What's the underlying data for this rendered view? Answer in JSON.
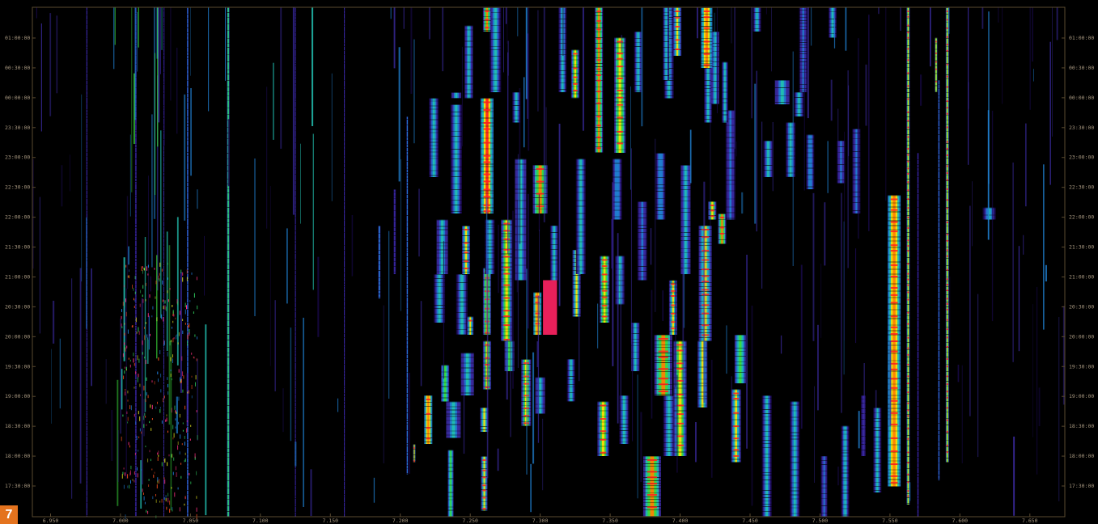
{
  "figure_number": "7",
  "colors": {
    "background": "#000000",
    "axis": "#5a4a30",
    "label": "#a89880",
    "badge": "#e4731e"
  },
  "chart_data": {
    "type": "heatmap",
    "x_unit": "MHz",
    "xlim": [
      6.937,
      7.675
    ],
    "x_ticks": [
      "6.950",
      "7.000",
      "7.050",
      "7.100",
      "7.150",
      "7.200",
      "7.250",
      "7.300",
      "7.350",
      "7.400",
      "7.450",
      "7.500",
      "7.550",
      "7.600",
      "7.650"
    ],
    "y_ticks": [
      "01:00:00",
      "00:30:00",
      "00:00:00",
      "23:30:00",
      "23:00:00",
      "22:30:00",
      "22:00:00",
      "21:30:00",
      "21:00:00",
      "20:30:00",
      "20:00:00",
      "19:30:00",
      "19:00:00",
      "18:30:00",
      "18:00:00",
      "17:30:00"
    ],
    "time_range_hours": [
      17.0,
      25.4
    ],
    "colormap": [
      "#000000",
      "#1a0a50",
      "#3a2aa0",
      "#1f7fd0",
      "#22c0b0",
      "#3adc3a",
      "#ffe000",
      "#ff8000",
      "#ff2020"
    ],
    "signals": [
      {
        "f": 7.236,
        "t0": 17.0,
        "t1": 18.1,
        "i": 0.62,
        "w": 7
      },
      {
        "f": 7.26,
        "t0": 17.1,
        "t1": 18.0,
        "i": 0.72,
        "w": 8
      },
      {
        "f": 7.21,
        "t0": 17.9,
        "t1": 18.2,
        "i": 0.85,
        "w": 3
      },
      {
        "f": 7.22,
        "t0": 18.2,
        "t1": 19.0,
        "i": 0.9,
        "w": 10
      },
      {
        "f": 7.238,
        "t0": 18.3,
        "t1": 18.9,
        "i": 0.55,
        "w": 18
      },
      {
        "f": 7.26,
        "t0": 18.4,
        "t1": 18.8,
        "i": 0.7,
        "w": 10
      },
      {
        "f": 7.232,
        "t0": 18.9,
        "t1": 19.5,
        "i": 0.6,
        "w": 10
      },
      {
        "f": 7.248,
        "t0": 19.0,
        "t1": 19.7,
        "i": 0.55,
        "w": 16
      },
      {
        "f": 7.262,
        "t0": 19.1,
        "t1": 19.9,
        "i": 0.75,
        "w": 10
      },
      {
        "f": 7.29,
        "t0": 18.5,
        "t1": 19.6,
        "i": 0.78,
        "w": 12
      },
      {
        "f": 7.278,
        "t0": 19.4,
        "t1": 19.9,
        "i": 0.62,
        "w": 12
      },
      {
        "f": 7.3,
        "t0": 18.7,
        "t1": 19.3,
        "i": 0.55,
        "w": 12
      },
      {
        "f": 7.322,
        "t0": 18.9,
        "t1": 19.6,
        "i": 0.48,
        "w": 10
      },
      {
        "f": 7.345,
        "t0": 18.0,
        "t1": 18.9,
        "i": 0.76,
        "w": 14
      },
      {
        "f": 7.36,
        "t0": 18.2,
        "t1": 19.0,
        "i": 0.45,
        "w": 12
      },
      {
        "f": 7.368,
        "t0": 19.4,
        "t1": 20.2,
        "i": 0.55,
        "w": 10
      },
      {
        "f": 7.38,
        "t0": 17.0,
        "t1": 18.0,
        "i": 0.86,
        "w": 22
      },
      {
        "f": 7.392,
        "t0": 18.0,
        "t1": 19.0,
        "i": 0.5,
        "w": 14
      },
      {
        "f": 7.4,
        "t0": 18.0,
        "t1": 19.9,
        "i": 0.78,
        "w": 16
      },
      {
        "f": 7.388,
        "t0": 19.0,
        "t1": 20.0,
        "i": 0.84,
        "w": 22
      },
      {
        "f": 7.416,
        "t0": 18.8,
        "t1": 19.9,
        "i": 0.7,
        "w": 12
      },
      {
        "f": 7.418,
        "t0": 19.9,
        "t1": 21.8,
        "i": 0.72,
        "w": 16
      },
      {
        "f": 7.44,
        "t0": 17.9,
        "t1": 19.1,
        "i": 0.72,
        "w": 12
      },
      {
        "f": 7.443,
        "t0": 19.2,
        "t1": 20.0,
        "i": 0.65,
        "w": 14
      },
      {
        "f": 7.462,
        "t0": 17.0,
        "t1": 19.0,
        "i": 0.5,
        "w": 12
      },
      {
        "f": 7.482,
        "t0": 17.0,
        "t1": 18.9,
        "i": 0.52,
        "w": 12
      },
      {
        "f": 7.518,
        "t0": 17.0,
        "t1": 18.5,
        "i": 0.45,
        "w": 10
      },
      {
        "f": 7.503,
        "t0": 17.0,
        "t1": 18.0,
        "i": 0.4,
        "w": 8
      },
      {
        "f": 7.395,
        "t0": 20.0,
        "t1": 20.9,
        "i": 0.72,
        "w": 10
      },
      {
        "f": 7.357,
        "t0": 20.5,
        "t1": 21.3,
        "i": 0.52,
        "w": 12
      },
      {
        "f": 7.346,
        "t0": 20.2,
        "t1": 21.3,
        "i": 0.8,
        "w": 12
      },
      {
        "f": 7.326,
        "t0": 20.3,
        "t1": 21.4,
        "i": 0.7,
        "w": 10
      },
      {
        "f": 7.298,
        "t0": 20.0,
        "t1": 20.7,
        "i": 0.92,
        "w": 10
      },
      {
        "f": 7.276,
        "t0": 19.9,
        "t1": 21.9,
        "i": 0.76,
        "w": 14
      },
      {
        "f": 7.262,
        "t0": 20.0,
        "t1": 21.1,
        "i": 0.82,
        "w": 10
      },
      {
        "f": 7.244,
        "t0": 20.0,
        "t1": 21.0,
        "i": 0.5,
        "w": 14
      },
      {
        "f": 7.228,
        "t0": 20.2,
        "t1": 21.0,
        "i": 0.45,
        "w": 14
      },
      {
        "f": 7.25,
        "t0": 20.0,
        "t1": 20.3,
        "i": 0.72,
        "w": 8
      },
      {
        "f": 7.23,
        "t0": 21.0,
        "t1": 21.9,
        "i": 0.55,
        "w": 14
      },
      {
        "f": 7.247,
        "t0": 21.0,
        "t1": 21.8,
        "i": 0.72,
        "w": 10
      },
      {
        "f": 7.264,
        "t0": 21.0,
        "t1": 21.9,
        "i": 0.45,
        "w": 12
      },
      {
        "f": 7.286,
        "t0": 20.9,
        "t1": 22.9,
        "i": 0.55,
        "w": 14
      },
      {
        "f": 7.31,
        "t0": 20.9,
        "t1": 21.8,
        "i": 0.5,
        "w": 10
      },
      {
        "f": 7.329,
        "t0": 21.0,
        "t1": 22.9,
        "i": 0.5,
        "w": 12
      },
      {
        "f": 7.355,
        "t0": 21.9,
        "t1": 22.9,
        "i": 0.42,
        "w": 12
      },
      {
        "f": 7.373,
        "t0": 20.9,
        "t1": 22.2,
        "i": 0.4,
        "w": 12
      },
      {
        "f": 7.386,
        "t0": 21.9,
        "t1": 23.0,
        "i": 0.42,
        "w": 12
      },
      {
        "f": 7.404,
        "t0": 21.0,
        "t1": 22.8,
        "i": 0.55,
        "w": 12
      },
      {
        "f": 7.423,
        "t0": 21.9,
        "t1": 22.2,
        "i": 0.78,
        "w": 10
      },
      {
        "f": 7.43,
        "t0": 21.5,
        "t1": 22.0,
        "i": 0.82,
        "w": 10
      },
      {
        "f": 7.436,
        "t0": 21.9,
        "t1": 23.7,
        "i": 0.4,
        "w": 12
      },
      {
        "f": 7.463,
        "t0": 22.6,
        "t1": 23.2,
        "i": 0.48,
        "w": 12
      },
      {
        "f": 7.479,
        "t0": 22.6,
        "t1": 23.5,
        "i": 0.48,
        "w": 12
      },
      {
        "f": 7.493,
        "t0": 22.4,
        "t1": 23.3,
        "i": 0.42,
        "w": 10
      },
      {
        "f": 7.515,
        "t0": 22.5,
        "t1": 23.2,
        "i": 0.35,
        "w": 10
      },
      {
        "f": 7.262,
        "t0": 22.0,
        "t1": 23.9,
        "i": 0.95,
        "w": 16
      },
      {
        "f": 7.24,
        "t0": 22.0,
        "t1": 23.8,
        "i": 0.45,
        "w": 14
      },
      {
        "f": 7.224,
        "t0": 22.6,
        "t1": 23.9,
        "i": 0.48,
        "w": 12
      },
      {
        "f": 7.24,
        "t0": 23.9,
        "t1": 24.0,
        "i": 0.55,
        "w": 12
      },
      {
        "f": 7.283,
        "t0": 23.5,
        "t1": 24.0,
        "i": 0.5,
        "w": 10
      },
      {
        "f": 7.3,
        "t0": 22.0,
        "t1": 22.8,
        "i": 0.82,
        "w": 18
      },
      {
        "f": 7.325,
        "t0": 23.9,
        "t1": 24.7,
        "i": 0.75,
        "w": 10
      },
      {
        "f": 7.342,
        "t0": 23.0,
        "t1": 25.4,
        "i": 0.86,
        "w": 10
      },
      {
        "f": 7.357,
        "t0": 23.0,
        "t1": 24.9,
        "i": 0.8,
        "w": 14
      },
      {
        "f": 7.37,
        "t0": 24.0,
        "t1": 25.0,
        "i": 0.45,
        "w": 10
      },
      {
        "f": 7.392,
        "t0": 23.9,
        "t1": 25.4,
        "i": 0.45,
        "w": 12
      },
      {
        "f": 7.398,
        "t0": 24.6,
        "t1": 25.4,
        "i": 0.72,
        "w": 10
      },
      {
        "f": 7.42,
        "t0": 23.5,
        "t1": 24.4,
        "i": 0.45,
        "w": 10
      },
      {
        "f": 7.425,
        "t0": 23.8,
        "t1": 25.0,
        "i": 0.55,
        "w": 10
      },
      {
        "f": 7.432,
        "t0": 23.5,
        "t1": 24.5,
        "i": 0.5,
        "w": 8
      },
      {
        "f": 7.419,
        "t0": 24.4,
        "t1": 25.4,
        "i": 0.9,
        "w": 14
      },
      {
        "f": 7.268,
        "t0": 24.0,
        "t1": 25.4,
        "i": 0.5,
        "w": 14
      },
      {
        "f": 7.249,
        "t0": 23.9,
        "t1": 25.1,
        "i": 0.55,
        "w": 10
      },
      {
        "f": 7.262,
        "t0": 25.0,
        "t1": 25.4,
        "i": 0.82,
        "w": 10
      },
      {
        "f": 7.316,
        "t0": 24.0,
        "t1": 25.4,
        "i": 0.45,
        "w": 10
      },
      {
        "f": 7.39,
        "t0": 24.2,
        "t1": 25.4,
        "i": 0.5,
        "w": 8
      },
      {
        "f": 7.473,
        "t0": 23.8,
        "t1": 24.2,
        "i": 0.55,
        "w": 18
      },
      {
        "f": 7.485,
        "t0": 23.6,
        "t1": 24.0,
        "i": 0.5,
        "w": 12
      },
      {
        "f": 7.488,
        "t0": 24.0,
        "t1": 25.4,
        "i": 0.4,
        "w": 10
      },
      {
        "f": 7.455,
        "t0": 25.0,
        "t1": 25.4,
        "i": 0.45,
        "w": 10
      },
      {
        "f": 7.509,
        "t0": 24.9,
        "t1": 25.4,
        "i": 0.45,
        "w": 10
      },
      {
        "f": 7.526,
        "t0": 22.0,
        "t1": 23.4,
        "i": 0.38,
        "w": 10
      },
      {
        "f": 7.553,
        "t0": 17.5,
        "t1": 22.3,
        "i": 0.92,
        "w": 16
      },
      {
        "f": 7.563,
        "t0": 17.2,
        "t1": 25.4,
        "i": 0.74,
        "w": 4
      },
      {
        "f": 7.591,
        "t0": 17.9,
        "t1": 25.4,
        "i": 0.76,
        "w": 4
      },
      {
        "f": 7.583,
        "t0": 24.0,
        "t1": 24.9,
        "i": 0.8,
        "w": 3
      },
      {
        "f": 7.585,
        "t0": 17.6,
        "t1": 24.2,
        "i": 0.4,
        "w": 2
      },
      {
        "f": 7.621,
        "t0": 21.9,
        "t1": 22.1,
        "i": 0.5,
        "w": 16
      },
      {
        "f": 7.57,
        "t0": 17.0,
        "t1": 23.0,
        "i": 0.3,
        "w": 2
      },
      {
        "f": 7.541,
        "t0": 17.4,
        "t1": 18.8,
        "i": 0.45,
        "w": 10
      },
      {
        "f": 7.531,
        "t0": 18.0,
        "t1": 19.0,
        "i": 0.3,
        "w": 6
      },
      {
        "f": 7.077,
        "t0": 17.0,
        "t1": 25.4,
        "i": 0.68,
        "w": 3
      },
      {
        "f": 7.011,
        "t0": 17.0,
        "t1": 25.4,
        "i": 0.3,
        "w": 2
      },
      {
        "f": 7.031,
        "t0": 17.0,
        "t1": 25.4,
        "i": 0.25,
        "w": 1
      },
      {
        "f": 6.976,
        "t0": 17.0,
        "t1": 25.4,
        "i": 0.25,
        "w": 1
      },
      {
        "f": 7.048,
        "t0": 17.0,
        "t1": 25.4,
        "i": 0.35,
        "w": 2
      },
      {
        "f": 7.125,
        "t0": 17.0,
        "t1": 25.4,
        "i": 0.22,
        "w": 1
      },
      {
        "f": 7.16,
        "t0": 17.0,
        "t1": 25.4,
        "i": 0.22,
        "w": 1
      },
      {
        "f": 7.185,
        "t0": 20.6,
        "t1": 21.8,
        "i": 0.42,
        "w": 3
      },
      {
        "f": 7.205,
        "t0": 17.7,
        "t1": 23.6,
        "i": 0.35,
        "w": 2
      },
      {
        "f": 7.196,
        "t0": 21.0,
        "t1": 22.4,
        "i": 0.3,
        "w": 3
      }
    ],
    "blocks": [
      {
        "f0": 7.302,
        "f1": 7.312,
        "t0": 20.0,
        "t1": 20.9,
        "color": "#e8205a"
      }
    ]
  }
}
